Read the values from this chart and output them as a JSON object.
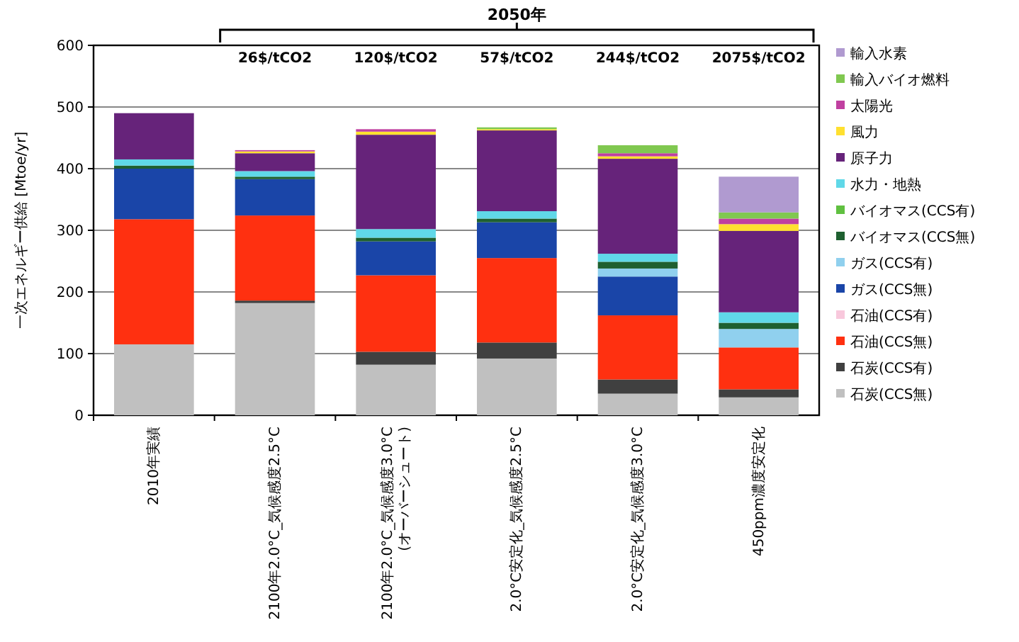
{
  "chart_data": {
    "type": "bar",
    "stacked": true,
    "ylabel": "一次エネルギー供給 [Mtoe/yr]",
    "categories": [
      "2010年実績",
      "2100年2.0°C_気候感度2.5°C",
      "2100年2.0°C_気候感度3.0°C\n(オーバーシュート)",
      "2.0°C安定化_気候感度2.5°C",
      "2.0°C安定化_気候感度3.0°C",
      "450ppm濃度安定化"
    ],
    "series": [
      {
        "name": "石炭(CCS無)",
        "color": "#c0c0c0",
        "values": [
          115,
          182,
          82,
          92,
          35,
          29
        ]
      },
      {
        "name": "石炭(CCS有)",
        "color": "#404040",
        "values": [
          0,
          4,
          21,
          26,
          23,
          13
        ]
      },
      {
        "name": "石油(CCS無)",
        "color": "#ff3010",
        "values": [
          203,
          138,
          124,
          137,
          104,
          68
        ]
      },
      {
        "name": "石油(CCS有)",
        "color": "#f8c8dc",
        "values": [
          0,
          0,
          0,
          0,
          0,
          0
        ]
      },
      {
        "name": "ガス(CCS無)",
        "color": "#1a45a8",
        "values": [
          82,
          59,
          55,
          58,
          63,
          0
        ]
      },
      {
        "name": "ガス(CCS有)",
        "color": "#90d0ee",
        "values": [
          0,
          0,
          0,
          0,
          13,
          30
        ]
      },
      {
        "name": "バイオマス(CCS無)",
        "color": "#1e6030",
        "values": [
          5,
          4,
          6,
          6,
          11,
          10
        ]
      },
      {
        "name": "バイオマス(CCS有)",
        "color": "#60c040",
        "values": [
          0,
          0,
          0,
          0,
          0,
          0
        ]
      },
      {
        "name": "水力・地熱",
        "color": "#60d8e8",
        "values": [
          10,
          9,
          14,
          12,
          13,
          17
        ]
      },
      {
        "name": "原子力",
        "color": "#66237a",
        "values": [
          75,
          29,
          153,
          131,
          154,
          132
        ]
      },
      {
        "name": "風力",
        "color": "#ffe030",
        "values": [
          0,
          3,
          5,
          2,
          4,
          11
        ]
      },
      {
        "name": "太陽光",
        "color": "#c040a0",
        "values": [
          0,
          2,
          4,
          0,
          5,
          9
        ]
      },
      {
        "name": "輸入バイオ燃料",
        "color": "#80c850",
        "values": [
          0,
          0,
          0,
          3,
          13,
          10
        ]
      },
      {
        "name": "輸入水素",
        "color": "#b09ad0",
        "values": [
          0,
          0,
          0,
          0,
          0,
          58
        ]
      }
    ],
    "ylim": [
      0,
      600
    ],
    "yticks": [
      0,
      100,
      200,
      300,
      400,
      500,
      600
    ],
    "grid": "y",
    "legend": "right",
    "annotations": [
      "2050年",
      "26$/tCO2",
      "120$/tCO2",
      "57$/tCO2",
      "244$/tCO2",
      "2075$/tCO2"
    ]
  }
}
